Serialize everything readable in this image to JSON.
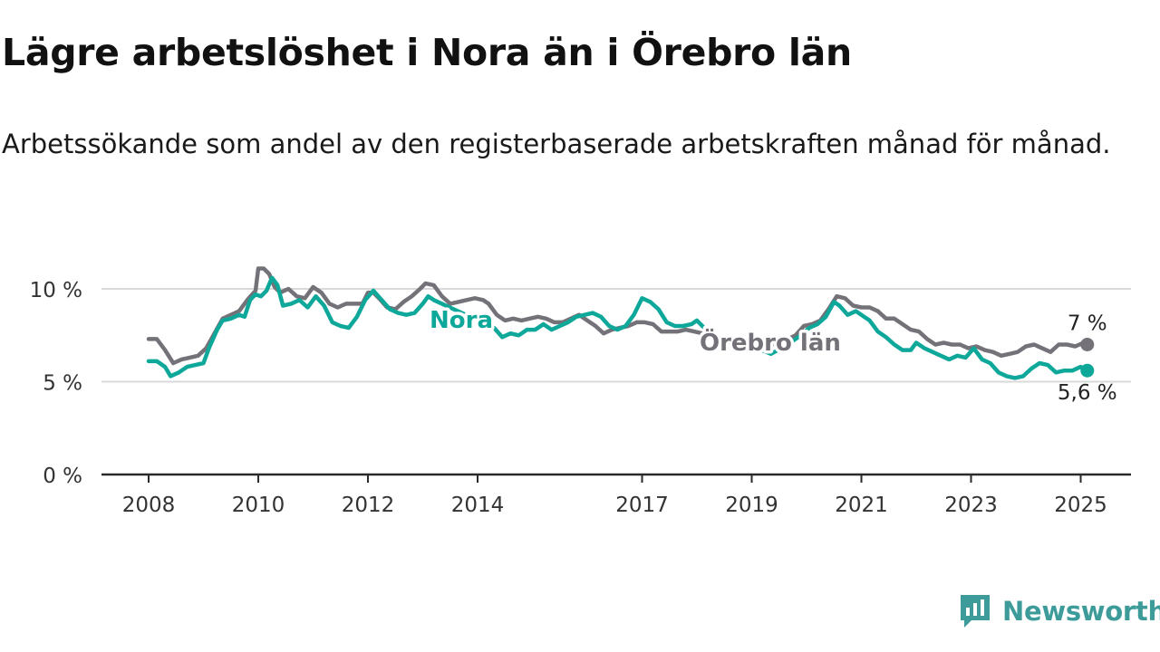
{
  "header": {
    "title": "Lägre arbetslöshet i Nora än i Örebro län",
    "subtitle": "Arbetssökande som andel av den registerbaserade arbetskraften månad för månad."
  },
  "logo": {
    "text": "Newsworthy",
    "icon": "newsworthy-logo-icon",
    "color": "#3d9c9a"
  },
  "chart_data": {
    "type": "line",
    "title": "Lägre arbetslöshet i Nora än i Örebro län",
    "subtitle": "Arbetssökande som andel av den registerbaserade arbetskraften månad för månad.",
    "xlabel": "",
    "ylabel": "",
    "xlim": [
      2007.5,
      2026
    ],
    "ylim": [
      0,
      10
    ],
    "yticks": [
      0,
      5,
      10
    ],
    "ytick_labels": [
      "0 %",
      "5 %",
      "10 %"
    ],
    "xticks": [
      2008,
      2010,
      2012,
      2014,
      2017,
      2019,
      2021,
      2023,
      2025
    ],
    "xtick_labels": [
      "2008",
      "2010",
      "2012",
      "2014",
      "2017",
      "2019",
      "2021",
      "2023",
      "2025"
    ],
    "grid": true,
    "legend": "inline labels",
    "series": [
      {
        "name": "Örebro län",
        "color": "#747278",
        "end_label": "7 %",
        "points": [
          [
            2008.0,
            7.3
          ],
          [
            2008.15,
            7.3
          ],
          [
            2008.3,
            6.7
          ],
          [
            2008.45,
            6.0
          ],
          [
            2008.6,
            6.2
          ],
          [
            2008.75,
            6.3
          ],
          [
            2008.9,
            6.4
          ],
          [
            2009.05,
            6.8
          ],
          [
            2009.2,
            7.6
          ],
          [
            2009.35,
            8.4
          ],
          [
            2009.5,
            8.6
          ],
          [
            2009.65,
            8.8
          ],
          [
            2009.8,
            9.4
          ],
          [
            2009.95,
            9.9
          ],
          [
            2010.0,
            11.1
          ],
          [
            2010.1,
            11.1
          ],
          [
            2010.2,
            10.8
          ],
          [
            2010.3,
            10.1
          ],
          [
            2010.4,
            9.8
          ],
          [
            2010.55,
            10.0
          ],
          [
            2010.7,
            9.6
          ],
          [
            2010.85,
            9.5
          ],
          [
            2011.0,
            10.1
          ],
          [
            2011.15,
            9.8
          ],
          [
            2011.3,
            9.2
          ],
          [
            2011.45,
            9.0
          ],
          [
            2011.6,
            9.2
          ],
          [
            2011.75,
            9.2
          ],
          [
            2011.9,
            9.2
          ],
          [
            2012.0,
            9.8
          ],
          [
            2012.1,
            9.8
          ],
          [
            2012.2,
            9.5
          ],
          [
            2012.35,
            9.0
          ],
          [
            2012.5,
            8.9
          ],
          [
            2012.65,
            9.3
          ],
          [
            2012.8,
            9.6
          ],
          [
            2012.95,
            10.0
          ],
          [
            2013.05,
            10.3
          ],
          [
            2013.2,
            10.2
          ],
          [
            2013.35,
            9.6
          ],
          [
            2013.5,
            9.2
          ],
          [
            2013.65,
            9.3
          ],
          [
            2013.8,
            9.4
          ],
          [
            2013.95,
            9.5
          ],
          [
            2014.1,
            9.4
          ],
          [
            2014.2,
            9.2
          ],
          [
            2014.35,
            8.6
          ],
          [
            2014.5,
            8.3
          ],
          [
            2014.65,
            8.4
          ],
          [
            2014.8,
            8.3
          ],
          [
            2014.95,
            8.4
          ],
          [
            2015.1,
            8.5
          ],
          [
            2015.25,
            8.4
          ],
          [
            2015.4,
            8.2
          ],
          [
            2015.55,
            8.2
          ],
          [
            2015.7,
            8.4
          ],
          [
            2015.85,
            8.6
          ],
          [
            2016.0,
            8.3
          ],
          [
            2016.15,
            8.0
          ],
          [
            2016.3,
            7.6
          ],
          [
            2016.45,
            7.8
          ],
          [
            2016.6,
            7.9
          ],
          [
            2016.75,
            8.0
          ],
          [
            2016.9,
            8.2
          ],
          [
            2017.05,
            8.2
          ],
          [
            2017.2,
            8.1
          ],
          [
            2017.35,
            7.7
          ],
          [
            2017.5,
            7.7
          ],
          [
            2017.65,
            7.7
          ],
          [
            2017.8,
            7.8
          ],
          [
            2017.95,
            7.7
          ],
          [
            2018.1,
            7.6
          ],
          [
            2018.3,
            7.4
          ],
          [
            2018.55,
            7.3
          ],
          [
            2018.8,
            7.1
          ],
          [
            2019.0,
            7.0
          ],
          [
            2019.2,
            6.9
          ],
          [
            2019.4,
            7.0
          ],
          [
            2019.6,
            7.2
          ],
          [
            2019.8,
            7.5
          ],
          [
            2019.95,
            8.0
          ],
          [
            2020.1,
            8.1
          ],
          [
            2020.25,
            8.3
          ],
          [
            2020.4,
            8.9
          ],
          [
            2020.55,
            9.6
          ],
          [
            2020.7,
            9.5
          ],
          [
            2020.85,
            9.1
          ],
          [
            2021.0,
            9.0
          ],
          [
            2021.15,
            9.0
          ],
          [
            2021.3,
            8.8
          ],
          [
            2021.45,
            8.4
          ],
          [
            2021.6,
            8.4
          ],
          [
            2021.75,
            8.1
          ],
          [
            2021.9,
            7.8
          ],
          [
            2022.05,
            7.7
          ],
          [
            2022.2,
            7.3
          ],
          [
            2022.35,
            7.0
          ],
          [
            2022.5,
            7.1
          ],
          [
            2022.65,
            7.0
          ],
          [
            2022.8,
            7.0
          ],
          [
            2022.95,
            6.8
          ],
          [
            2023.1,
            6.9
          ],
          [
            2023.25,
            6.7
          ],
          [
            2023.4,
            6.6
          ],
          [
            2023.55,
            6.4
          ],
          [
            2023.7,
            6.5
          ],
          [
            2023.85,
            6.6
          ],
          [
            2024.0,
            6.9
          ],
          [
            2024.15,
            7.0
          ],
          [
            2024.3,
            6.8
          ],
          [
            2024.45,
            6.6
          ],
          [
            2024.6,
            7.0
          ],
          [
            2024.75,
            7.0
          ],
          [
            2024.9,
            6.9
          ],
          [
            2025.05,
            7.1
          ],
          [
            2025.12,
            7.0
          ]
        ]
      },
      {
        "name": "Nora",
        "color": "#0ea89a",
        "end_label": "5,6 %",
        "points": [
          [
            2008.0,
            6.1
          ],
          [
            2008.15,
            6.1
          ],
          [
            2008.3,
            5.8
          ],
          [
            2008.4,
            5.3
          ],
          [
            2008.55,
            5.5
          ],
          [
            2008.7,
            5.8
          ],
          [
            2008.85,
            5.9
          ],
          [
            2009.0,
            6.0
          ],
          [
            2009.1,
            6.8
          ],
          [
            2009.25,
            7.8
          ],
          [
            2009.35,
            8.3
          ],
          [
            2009.5,
            8.4
          ],
          [
            2009.65,
            8.6
          ],
          [
            2009.75,
            8.5
          ],
          [
            2009.85,
            9.4
          ],
          [
            2009.95,
            9.7
          ],
          [
            2010.05,
            9.6
          ],
          [
            2010.15,
            9.9
          ],
          [
            2010.25,
            10.6
          ],
          [
            2010.35,
            10.2
          ],
          [
            2010.45,
            9.1
          ],
          [
            2010.6,
            9.2
          ],
          [
            2010.75,
            9.4
          ],
          [
            2010.9,
            9.0
          ],
          [
            2011.05,
            9.6
          ],
          [
            2011.2,
            9.1
          ],
          [
            2011.35,
            8.2
          ],
          [
            2011.5,
            8.0
          ],
          [
            2011.65,
            7.9
          ],
          [
            2011.8,
            8.5
          ],
          [
            2011.95,
            9.4
          ],
          [
            2012.1,
            9.9
          ],
          [
            2012.25,
            9.4
          ],
          [
            2012.4,
            8.9
          ],
          [
            2012.55,
            8.7
          ],
          [
            2012.7,
            8.6
          ],
          [
            2012.85,
            8.7
          ],
          [
            2013.0,
            9.2
          ],
          [
            2013.1,
            9.6
          ],
          [
            2013.2,
            9.4
          ],
          [
            2014.3,
            7.9
          ],
          [
            2014.45,
            7.4
          ],
          [
            2014.6,
            7.6
          ],
          [
            2014.75,
            7.5
          ],
          [
            2014.9,
            7.8
          ],
          [
            2015.05,
            7.8
          ],
          [
            2015.2,
            8.1
          ],
          [
            2015.35,
            7.8
          ],
          [
            2015.5,
            8.0
          ],
          [
            2015.65,
            8.2
          ],
          [
            2015.8,
            8.5
          ],
          [
            2015.95,
            8.6
          ],
          [
            2016.1,
            8.7
          ],
          [
            2016.25,
            8.5
          ],
          [
            2016.4,
            8.0
          ],
          [
            2016.55,
            7.8
          ],
          [
            2016.7,
            8.0
          ],
          [
            2016.85,
            8.6
          ],
          [
            2017.0,
            9.5
          ],
          [
            2017.15,
            9.3
          ],
          [
            2017.3,
            8.9
          ],
          [
            2017.45,
            8.2
          ],
          [
            2017.6,
            8.0
          ],
          [
            2017.75,
            8.0
          ],
          [
            2017.9,
            8.1
          ],
          [
            2018.0,
            8.3
          ],
          [
            2018.2,
            7.7
          ],
          [
            2018.5,
            7.2
          ],
          [
            2018.8,
            6.9
          ],
          [
            2019.1,
            6.8
          ],
          [
            2019.35,
            6.5
          ],
          [
            2019.6,
            6.9
          ],
          [
            2019.85,
            7.4
          ],
          [
            2020.05,
            7.9
          ],
          [
            2020.2,
            8.1
          ],
          [
            2020.35,
            8.5
          ],
          [
            2020.5,
            9.3
          ],
          [
            2020.6,
            9.1
          ],
          [
            2020.75,
            8.6
          ],
          [
            2020.9,
            8.8
          ],
          [
            2021.05,
            8.5
          ],
          [
            2021.15,
            8.3
          ],
          [
            2021.3,
            7.7
          ],
          [
            2021.45,
            7.4
          ],
          [
            2021.6,
            7.0
          ],
          [
            2021.75,
            6.7
          ],
          [
            2021.9,
            6.7
          ],
          [
            2022.0,
            7.1
          ],
          [
            2022.15,
            6.8
          ],
          [
            2022.3,
            6.6
          ],
          [
            2022.45,
            6.4
          ],
          [
            2022.6,
            6.2
          ],
          [
            2022.75,
            6.4
          ],
          [
            2022.9,
            6.3
          ],
          [
            2023.05,
            6.8
          ],
          [
            2023.2,
            6.2
          ],
          [
            2023.35,
            6.0
          ],
          [
            2023.5,
            5.5
          ],
          [
            2023.65,
            5.3
          ],
          [
            2023.8,
            5.2
          ],
          [
            2023.95,
            5.3
          ],
          [
            2024.1,
            5.7
          ],
          [
            2024.25,
            6.0
          ],
          [
            2024.4,
            5.9
          ],
          [
            2024.55,
            5.5
          ],
          [
            2024.7,
            5.6
          ],
          [
            2024.85,
            5.6
          ],
          [
            2025.0,
            5.8
          ],
          [
            2025.12,
            5.6
          ]
        ]
      }
    ]
  }
}
